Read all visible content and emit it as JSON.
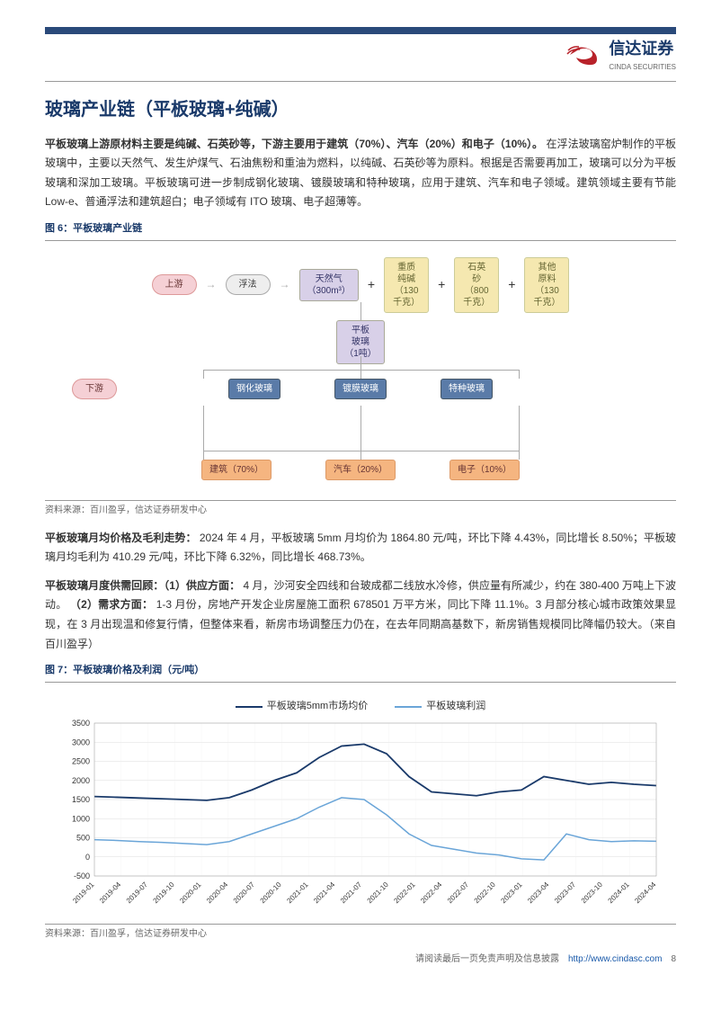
{
  "header": {
    "company": "信达证券",
    "company_en": "CINDA SECURITIES"
  },
  "title": "玻璃产业链（平板玻璃+纯碱）",
  "p1": {
    "bold": "平板玻璃上游原材料主要是纯碱、石英砂等，下游主要用于建筑（70%）、汽车（20%）和电子（10%）。",
    "text": "在浮法玻璃窑炉制作的平板玻璃中，主要以天然气、发生炉煤气、石油焦粉和重油为燃料，以纯碱、石英砂等为原料。根据是否需要再加工，玻璃可以分为平板玻璃和深加工玻璃。平板玻璃可进一步制成钢化玻璃、镀膜玻璃和特种玻璃，应用于建筑、汽车和电子领域。建筑领域主要有节能 Low-e、普通浮法和建筑超白；电子领域有 ITO 玻璃、电子超薄等。"
  },
  "fig6": {
    "title": "图 6：平板玻璃产业链",
    "src": "资料来源：百川盈孚，信达证券研发中心"
  },
  "flow": {
    "upstream": "上游",
    "downstream": "下游",
    "method": "浮法",
    "inputs": [
      {
        "label": "天然气\n（300m³）",
        "color": "purple"
      },
      {
        "label": "重质\n纯碱\n（130\n千克）",
        "color": "yellow"
      },
      {
        "label": "石英\n砂\n（800\n千克）",
        "color": "yellow"
      },
      {
        "label": "其他\n原料\n（130\n千克）",
        "color": "yellow"
      }
    ],
    "product": "平板\n玻璃\n（1吨）",
    "mid": [
      "钢化玻璃",
      "镀膜玻璃",
      "特种玻璃"
    ],
    "apps": [
      "建筑（70%）",
      "汽车（20%）",
      "电子（10%）"
    ]
  },
  "p2": {
    "bold": "平板玻璃月均价格及毛利走势：",
    "text": "2024 年 4 月，平板玻璃 5mm 月均价为 1864.80 元/吨，环比下降 4.43%，同比增长 8.50%；平板玻璃月均毛利为 410.29 元/吨，环比下降 6.32%，同比增长 468.73%。"
  },
  "p3": {
    "bold": "平板玻璃月度供需回顾：（1）供应方面：",
    "text1": "4 月，沙河安全四线和台玻成都二线放水冷修，供应量有所减少，约在 380-400 万吨上下波动。",
    "bold2": "（2）需求方面：",
    "text2": "1-3 月份，房地产开发企业房屋施工面积 678501 万平方米，同比下降 11.1%。3 月部分核心城市政策效果显现，在 3 月出现温和修复行情，但整体来看，新房市场调整压力仍在，在去年同期高基数下，新房销售规模同比降幅仍较大。（来自百川盈孚）"
  },
  "fig7": {
    "title": "图 7：平板玻璃价格及利润（元/吨）",
    "src": "资料来源：百川盈孚，信达证券研发中心"
  },
  "chart": {
    "series1": {
      "name": "平板玻璃5mm市场均价",
      "color": "#1a3a6a"
    },
    "series2": {
      "name": "平板玻璃利润",
      "color": "#6aa5d8"
    },
    "ylim": [
      -500,
      3500
    ],
    "yticks": [
      -500,
      0,
      500,
      1000,
      1500,
      2000,
      2500,
      3000,
      3500
    ],
    "xticks": [
      "2019-01",
      "2019-04",
      "2019-07",
      "2019-10",
      "2020-01",
      "2020-04",
      "2020-07",
      "2020-10",
      "2021-01",
      "2021-04",
      "2021-07",
      "2021-10",
      "2022-01",
      "2022-04",
      "2022-07",
      "2022-10",
      "2023-01",
      "2023-04",
      "2023-07",
      "2023-10",
      "2024-01",
      "2024-04"
    ],
    "price": [
      1580,
      1560,
      1540,
      1520,
      1500,
      1480,
      1550,
      1750,
      2000,
      2200,
      2600,
      2900,
      2950,
      2700,
      2100,
      1700,
      1650,
      1600,
      1700,
      1750,
      2100,
      2000,
      1900,
      1950,
      1900,
      1864
    ],
    "profit": [
      450,
      430,
      400,
      380,
      350,
      320,
      400,
      600,
      800,
      1000,
      1300,
      1550,
      1500,
      1100,
      600,
      300,
      200,
      100,
      50,
      -50,
      -80,
      600,
      450,
      400,
      420,
      410
    ]
  },
  "footer": {
    "text": "请阅读最后一页免责声明及信息披露",
    "url": "http://www.cindasc.com",
    "page": "8"
  }
}
